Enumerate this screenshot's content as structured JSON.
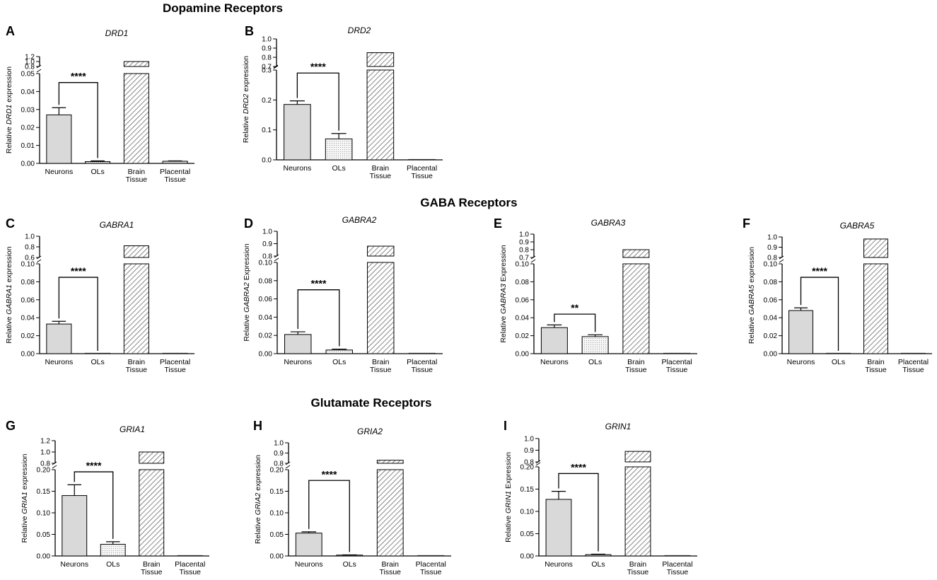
{
  "figure": {
    "section_titles": [
      "Dopamine Receptors",
      "GABA Receptors",
      "Glutamate Receptors"
    ],
    "colors": {
      "neurons": "#d9d9d9",
      "ols": "#f4f4f4",
      "axis": "#000000",
      "hatch": "#555555"
    }
  },
  "chart_data": [
    {
      "panel": "A",
      "type": "bar",
      "title": "DRD1",
      "ylabel_parts": [
        "Relative ",
        "DRD1",
        " expression"
      ],
      "categories": [
        [
          "Neurons"
        ],
        [
          "OLs"
        ],
        [
          "Brain",
          "Tissue"
        ],
        [
          "Placental",
          "Tissue"
        ]
      ],
      "values": [
        0.027,
        0.001,
        1.0,
        0.0012
      ],
      "errors": [
        0.004,
        0.0004,
        0,
        0.0002
      ],
      "patterns": [
        "solid",
        "dots",
        "hatch",
        "solid"
      ],
      "lower_ylim": [
        0,
        0.05
      ],
      "lower_ticks": [
        "0.00",
        "0.01",
        "0.02",
        "0.03",
        "0.04",
        "0.05"
      ],
      "upper_ylim": [
        0.8,
        1.2
      ],
      "upper_ticks": [
        "0.8",
        "1.0",
        "1.2"
      ],
      "significance": {
        "label": "****",
        "from": 0,
        "to": 1,
        "y": 0.045
      }
    },
    {
      "panel": "B",
      "type": "bar",
      "title": "DRD2",
      "ylabel_parts": [
        "Relative ",
        "DRD2",
        " expression"
      ],
      "categories": [
        [
          "Neurons"
        ],
        [
          "OLs"
        ],
        [
          "Brain",
          "Tissue"
        ],
        [
          "Placental",
          "Tissue"
        ]
      ],
      "values": [
        0.185,
        0.07,
        0.85,
        0.0
      ],
      "errors": [
        0.012,
        0.018,
        0,
        0
      ],
      "patterns": [
        "solid",
        "dots",
        "hatch",
        "solid"
      ],
      "lower_ylim": [
        0,
        0.3
      ],
      "lower_ticks": [
        "0.0",
        "0.1",
        "0.2",
        "0.3"
      ],
      "upper_ylim": [
        0.7,
        1.0
      ],
      "upper_ticks": [
        "0.7",
        "0.8",
        "0.9",
        "1.0"
      ],
      "significance": {
        "label": "****",
        "from": 0,
        "to": 1,
        "y": 0.29
      }
    },
    {
      "panel": "C",
      "type": "bar",
      "title": "GABRA1",
      "ylabel_parts": [
        "Relative ",
        "GABRA1",
        " expression"
      ],
      "categories": [
        [
          "Neurons"
        ],
        [
          "OLs"
        ],
        [
          "Brain",
          "Tissue"
        ],
        [
          "Placental",
          "Tissue"
        ]
      ],
      "values": [
        0.033,
        0.0,
        0.82,
        0.0
      ],
      "errors": [
        0.003,
        0,
        0,
        0
      ],
      "patterns": [
        "solid",
        "dots",
        "hatch",
        "solid"
      ],
      "lower_ylim": [
        0,
        0.1
      ],
      "lower_ticks": [
        "0.00",
        "0.02",
        "0.04",
        "0.06",
        "0.08",
        "0.10"
      ],
      "upper_ylim": [
        0.6,
        1.0
      ],
      "upper_ticks": [
        "0.6",
        "0.8",
        "1.0"
      ],
      "significance": {
        "label": "****",
        "from": 0,
        "to": 1,
        "y": 0.085
      }
    },
    {
      "panel": "D",
      "type": "bar",
      "title": "GABRA2",
      "ylabel_parts": [
        "Relative ",
        "GABRA2",
        " Expression"
      ],
      "categories": [
        [
          "Neurons"
        ],
        [
          "OLs"
        ],
        [
          "Brain",
          "Tissue"
        ],
        [
          "Placental",
          "Tissue"
        ]
      ],
      "values": [
        0.021,
        0.004,
        0.88,
        0.0
      ],
      "errors": [
        0.003,
        0.001,
        0,
        0
      ],
      "patterns": [
        "solid",
        "dots",
        "hatch",
        "solid"
      ],
      "lower_ylim": [
        0,
        0.1
      ],
      "lower_ticks": [
        "0.00",
        "0.02",
        "0.04",
        "0.06",
        "0.08",
        "0.10"
      ],
      "upper_ylim": [
        0.8,
        1.0
      ],
      "upper_ticks": [
        "0.8",
        "0.9",
        "1.0"
      ],
      "significance": {
        "label": "****",
        "from": 0,
        "to": 1,
        "y": 0.07
      }
    },
    {
      "panel": "E",
      "type": "bar",
      "title": "GABRA3",
      "ylabel_parts": [
        "Relative ",
        "GABRA3",
        " Expression"
      ],
      "categories": [
        [
          "Neurons"
        ],
        [
          "OLs"
        ],
        [
          "Brain",
          "Tissue"
        ],
        [
          "Placental",
          "Tissue"
        ]
      ],
      "values": [
        0.029,
        0.019,
        0.8,
        0.0
      ],
      "errors": [
        0.003,
        0.002,
        0,
        0
      ],
      "patterns": [
        "solid",
        "dots",
        "hatch",
        "solid"
      ],
      "lower_ylim": [
        0,
        0.1
      ],
      "lower_ticks": [
        "0.00",
        "0.02",
        "0.04",
        "0.06",
        "0.08",
        "0.10"
      ],
      "upper_ylim": [
        0.7,
        1.0
      ],
      "upper_ticks": [
        "0.7",
        "0.8",
        "0.9",
        "1.0"
      ],
      "significance": {
        "label": "**",
        "from": 0,
        "to": 1,
        "y": 0.044
      }
    },
    {
      "panel": "F",
      "type": "bar",
      "title": "GABRA5",
      "ylabel_parts": [
        "Relative ",
        "GABRA5",
        " expression"
      ],
      "categories": [
        [
          "Neurons"
        ],
        [
          "OLs"
        ],
        [
          "Brain",
          "Tissue"
        ],
        [
          "Placental",
          "Tissue"
        ]
      ],
      "values": [
        0.048,
        0.0,
        0.98,
        0.0
      ],
      "errors": [
        0.003,
        0,
        0,
        0
      ],
      "patterns": [
        "solid",
        "dots",
        "hatch",
        "solid"
      ],
      "lower_ylim": [
        0,
        0.1
      ],
      "lower_ticks": [
        "0.00",
        "0.02",
        "0.04",
        "0.06",
        "0.08",
        "0.10"
      ],
      "upper_ylim": [
        0.8,
        1.0
      ],
      "upper_ticks": [
        "0.8",
        "0.9",
        "1.0"
      ],
      "significance": {
        "label": "****",
        "from": 0,
        "to": 1,
        "y": 0.085
      }
    },
    {
      "panel": "G",
      "type": "bar",
      "title": "GRIA1",
      "ylabel_parts": [
        "Relative ",
        "GRIA1",
        " expression"
      ],
      "categories": [
        [
          "Neurons"
        ],
        [
          "OLs"
        ],
        [
          "Brain",
          "Tissue"
        ],
        [
          "Placental",
          "Tissue"
        ]
      ],
      "values": [
        0.14,
        0.027,
        1.0,
        0.0
      ],
      "errors": [
        0.025,
        0.006,
        0,
        0
      ],
      "patterns": [
        "solid",
        "dots",
        "hatch",
        "solid"
      ],
      "lower_ylim": [
        0,
        0.2
      ],
      "lower_ticks": [
        "0.00",
        "0.05",
        "0.10",
        "0.15",
        "0.20"
      ],
      "upper_ylim": [
        0.8,
        1.2
      ],
      "upper_ticks": [
        "0.8",
        "1.0",
        "1.2"
      ],
      "significance": {
        "label": "****",
        "from": 0,
        "to": 1,
        "y": 0.195
      }
    },
    {
      "panel": "H",
      "type": "bar",
      "title": "GRIA2",
      "ylabel_parts": [
        "Relative ",
        "GRIA2",
        " expression"
      ],
      "categories": [
        [
          "Neurons"
        ],
        [
          "OLs"
        ],
        [
          "Brain",
          "Tissue"
        ],
        [
          "Placental",
          "Tissue"
        ]
      ],
      "values": [
        0.053,
        0.002,
        0.83,
        0.0
      ],
      "errors": [
        0.003,
        0.0005,
        0,
        0
      ],
      "patterns": [
        "solid",
        "dots",
        "hatch",
        "solid"
      ],
      "lower_ylim": [
        0,
        0.2
      ],
      "lower_ticks": [
        "0.00",
        "0.05",
        "0.10",
        "0.15",
        "0.20"
      ],
      "upper_ylim": [
        0.8,
        1.0
      ],
      "upper_ticks": [
        "0.8",
        "0.9",
        "1.0"
      ],
      "significance": {
        "label": "****",
        "from": 0,
        "to": 1,
        "y": 0.175
      }
    },
    {
      "panel": "I",
      "type": "bar",
      "title": "GRIN1",
      "ylabel_parts": [
        "Relative ",
        "GRIN1",
        " Expression"
      ],
      "categories": [
        [
          "Neurons"
        ],
        [
          "OLs"
        ],
        [
          "Brain",
          "Tissue"
        ],
        [
          "Placental",
          "Tissue"
        ]
      ],
      "values": [
        0.127,
        0.003,
        0.89,
        0.0
      ],
      "errors": [
        0.018,
        0.001,
        0,
        0
      ],
      "patterns": [
        "solid",
        "dots",
        "hatch",
        "solid"
      ],
      "lower_ylim": [
        0,
        0.2
      ],
      "lower_ticks": [
        "0.00",
        "0.05",
        "0.10",
        "0.15",
        "0.20"
      ],
      "upper_ylim": [
        0.8,
        1.0
      ],
      "upper_ticks": [
        "0.8",
        "0.9",
        "1.0"
      ],
      "significance": {
        "label": "****",
        "from": 0,
        "to": 1,
        "y": 0.185
      }
    }
  ]
}
